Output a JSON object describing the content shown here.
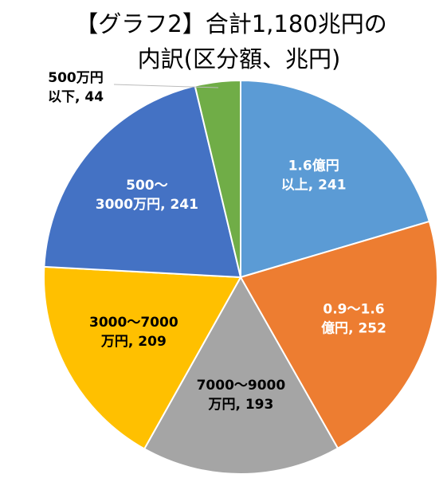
{
  "chart_data": {
    "type": "pie",
    "title": [
      "【グラフ2】合計1,180兆円の",
      "内訳(区分額、兆円)"
    ],
    "categories": [
      [
        "1.6億円",
        "以上"
      ],
      [
        "0.9～1.6",
        "億円"
      ],
      [
        "7000～9000",
        "万円"
      ],
      [
        "3000～7000",
        "万円"
      ],
      [
        "500～",
        "3000万円"
      ],
      [
        "500万円",
        "以下"
      ]
    ],
    "label_separator": ", ",
    "values": [
      241,
      252,
      193,
      209,
      241,
      44
    ],
    "colors": [
      "#5b9bd5",
      "#ed7d31",
      "#a5a5a5",
      "#ffc000",
      "#4472c4",
      "#70ad47"
    ],
    "label_colors": [
      "#ffffff",
      "#ffffff",
      "#000000",
      "#000000",
      "#ffffff",
      "#000000"
    ]
  }
}
